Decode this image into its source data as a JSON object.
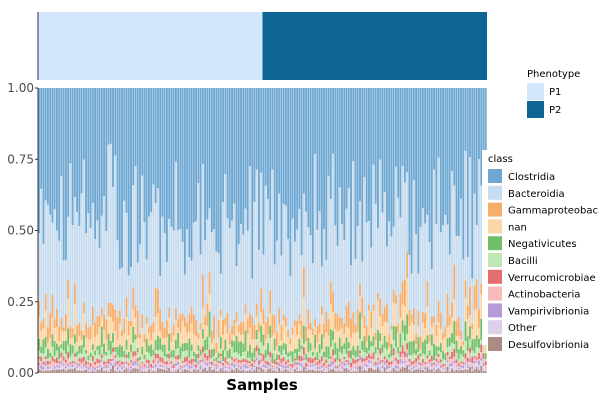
{
  "chart_data": {
    "type": "stacked-bar",
    "xlabel": "Samples",
    "ylabel": "",
    "ylim": [
      0,
      1
    ],
    "yticks": [
      "0.00",
      "0.25",
      "0.50",
      "0.75",
      "1.00"
    ],
    "n_samples": 200,
    "phenotype_annotation": {
      "title": "Phenotype",
      "groups": [
        {
          "name": "P1",
          "count": 100,
          "color": "#d3e6fb"
        },
        {
          "name": "P2",
          "count": 100,
          "color": "#0e6594"
        }
      ]
    },
    "legend": {
      "title": "class",
      "placement": "right"
    },
    "series": [
      {
        "name": "Clostridia",
        "color": "#6ea8d2",
        "mean": 0.45
      },
      {
        "name": "Bacteroidia",
        "color": "#c8dcef",
        "mean": 0.34
      },
      {
        "name": "Gammaproteobac",
        "color": "#f7ae6b",
        "mean": 0.05
      },
      {
        "name": "nan",
        "color": "#fbd6a6",
        "mean": 0.05
      },
      {
        "name": "Negativicutes",
        "color": "#72bf6a",
        "mean": 0.035
      },
      {
        "name": "Bacilli",
        "color": "#bfe7b3",
        "mean": 0.02
      },
      {
        "name": "Verrucomicrobiae",
        "color": "#e46e6e",
        "mean": 0.012
      },
      {
        "name": "Actinobacteria",
        "color": "#f6bcbc",
        "mean": 0.01
      },
      {
        "name": "Vampirivibrionia",
        "color": "#b79ad8",
        "mean": 0.008
      },
      {
        "name": "Other",
        "color": "#dcd0ea",
        "mean": 0.01
      },
      {
        "name": "Desulfovibrionia",
        "color": "#ad8a82",
        "mean": 0.01
      }
    ]
  }
}
